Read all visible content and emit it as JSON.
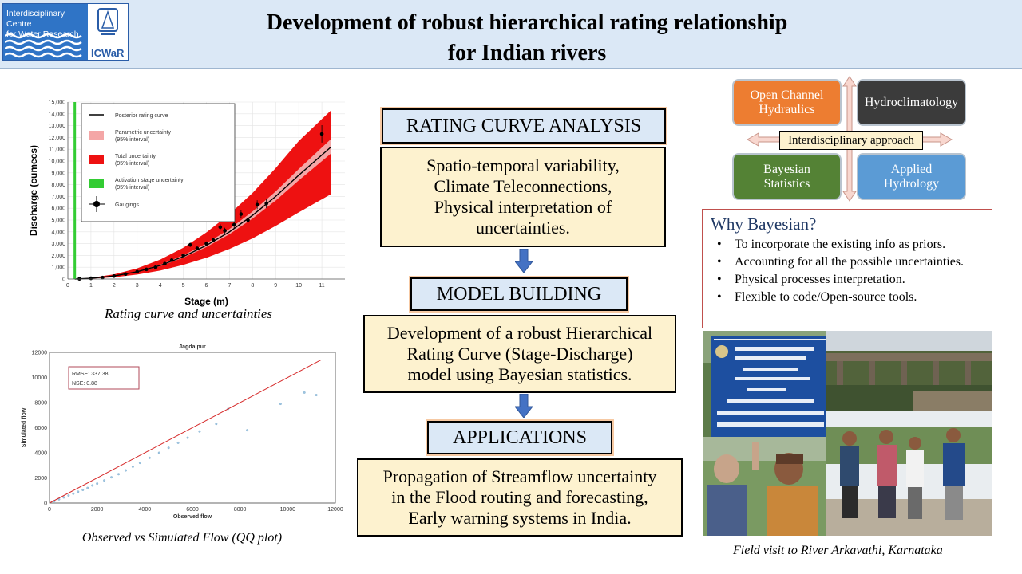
{
  "header": {
    "logo_text_line1": "Interdisciplinary Centre",
    "logo_text_line2": "for Water Research",
    "logo_abbr": "ICWaR",
    "title_line1": "Development of robust hierarchical rating relationship",
    "title_line2": "for Indian rivers"
  },
  "left": {
    "caption_rating": "Rating curve and uncertainties",
    "caption_qq": "Observed vs Simulated Flow (QQ plot)"
  },
  "center": {
    "box1_label": "RATING CURVE ANALYSIS",
    "box1_lines": [
      "Spatio-temporal variability,",
      "Climate Teleconnections,",
      "Physical interpretation of",
      "uncertainties."
    ],
    "box2_label": "MODEL BUILDING",
    "box2_lines": [
      "Development of a robust Hierarchical",
      "Rating Curve (Stage-Discharge)",
      "model using Bayesian statistics."
    ],
    "box3_label": "APPLICATIONS",
    "box3_lines": [
      "Propagation of Streamflow uncertainty",
      "in the Flood routing and forecasting,",
      "Early warning systems in India."
    ]
  },
  "right": {
    "disciplines": {
      "och_line1": "Open Channel",
      "och_line2": "Hydraulics",
      "hydroclim": "Hydroclimatology",
      "bayes_line1": "Bayesian",
      "bayes_line2": "Statistics",
      "applied_line1": "Applied",
      "applied_line2": "Hydrology",
      "center_label": "Interdisciplinary approach"
    },
    "why": {
      "title": "Why Bayesian?",
      "items": [
        "To incorporate the existing info as priors.",
        "Accounting for all the possible uncertainties.",
        "Physical processes interpretation.",
        "Flexible to code/Open-source tools."
      ]
    },
    "photo_caption": "Field visit to River Arkavathi, Karnataka"
  },
  "colors": {
    "och": "#ed7d31",
    "hydroclim": "#3b3b3b",
    "bayes": "#548235",
    "applied": "#5b9bd5",
    "header_bg": "#dbe8f6",
    "content_bg": "#fdf2cf",
    "arrow": "#4472c4",
    "total_unc": "#ee1111",
    "param_unc": "#f4a6a6",
    "activation": "#33cc33"
  },
  "chart_data": [
    {
      "type": "line",
      "title": "",
      "xlabel": "Stage (m)",
      "ylabel": "Discharge (cumecs)",
      "xlim": [
        0,
        12
      ],
      "ylim": [
        0,
        15000
      ],
      "x_ticks": [
        0,
        1,
        2,
        3,
        4,
        5,
        6,
        7,
        8,
        9,
        10,
        11
      ],
      "y_ticks": [
        0,
        1000,
        2000,
        3000,
        4000,
        5000,
        6000,
        7000,
        8000,
        9000,
        10000,
        11000,
        12000,
        13000,
        14000,
        15000
      ],
      "legend": [
        "Posterior rating curve",
        "Parametric uncertainty (95% interval)",
        "Total uncertainty (95% interval)",
        "Activation stage uncertainty (95% interval)",
        "Gaugings"
      ],
      "legend_lines": {
        "param": [
          "Parametric uncertainty",
          "(95% interval)"
        ],
        "total": [
          "Total uncertainty",
          "(95% interval)"
        ],
        "activation": [
          "Activation stage uncertainty",
          "(95% interval)"
        ]
      },
      "legend_position": "top-left",
      "activation_stage": 0.3,
      "rating_curve": {
        "x": [
          0.3,
          1,
          2,
          3,
          4,
          5,
          6,
          7,
          8,
          9,
          10,
          11.4
        ],
        "y": [
          0,
          60,
          260,
          620,
          1150,
          1900,
          2850,
          4000,
          5400,
          7000,
          8800,
          11200
        ]
      },
      "total_upper": [
        0,
        100,
        400,
        900,
        1650,
        2650,
        3950,
        5500,
        7300,
        9400,
        11700,
        14300
      ],
      "total_lower": [
        0,
        30,
        150,
        380,
        720,
        1200,
        1800,
        2550,
        3450,
        4500,
        5650,
        7200
      ],
      "gaugings": {
        "x": [
          0.5,
          1.0,
          1.5,
          2.0,
          2.5,
          3.0,
          3.4,
          3.8,
          4.2,
          4.5,
          5.0,
          5.3,
          5.6,
          6.0,
          6.3,
          6.6,
          6.8,
          7.2,
          7.5,
          7.8,
          8.2,
          8.6,
          11.0
        ],
        "y": [
          20,
          60,
          120,
          250,
          420,
          620,
          820,
          1000,
          1300,
          1600,
          2000,
          2900,
          2600,
          3000,
          3300,
          4400,
          4100,
          4600,
          5500,
          5000,
          6300,
          6400,
          12300
        ]
      }
    },
    {
      "type": "scatter",
      "title": "Jagdalpur",
      "xlabel": "Observed flow",
      "ylabel": "Simulated flow",
      "xlim": [
        0,
        12000
      ],
      "ylim": [
        0,
        12000
      ],
      "x_ticks": [
        0,
        2000,
        4000,
        6000,
        8000,
        10000,
        12000
      ],
      "y_ticks": [
        0,
        2000,
        4000,
        6000,
        8000,
        10000,
        12000
      ],
      "metrics": [
        "RMSE: 337.38",
        "NSE: 0.88"
      ],
      "reference_line": {
        "x": [
          0,
          11400
        ],
        "y": [
          0,
          11400
        ]
      },
      "points": {
        "x": [
          200,
          400,
          600,
          800,
          1000,
          1200,
          1400,
          1600,
          1800,
          2000,
          2300,
          2600,
          2900,
          3200,
          3500,
          3800,
          4200,
          4600,
          5000,
          5400,
          5800,
          6300,
          7000,
          7500,
          8300,
          9700,
          10700,
          11200
        ],
        "y": [
          150,
          300,
          450,
          600,
          750,
          900,
          1050,
          1200,
          1400,
          1550,
          1800,
          2050,
          2300,
          2600,
          2900,
          3200,
          3600,
          4000,
          4400,
          4800,
          5200,
          5700,
          6300,
          7500,
          5800,
          7900,
          8800,
          8600
        ]
      }
    }
  ]
}
